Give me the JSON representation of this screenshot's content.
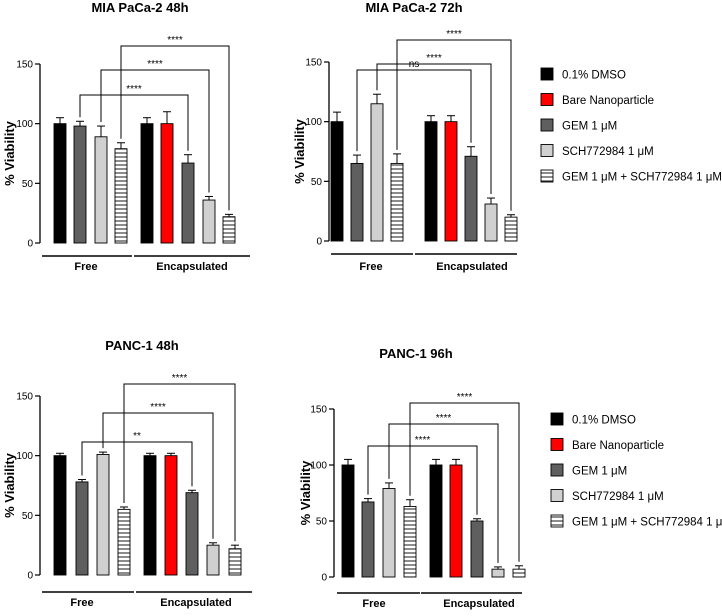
{
  "chart_data": [
    {
      "type": "bar",
      "title": "MIA PaCa-2 48h",
      "ylabel": "% Viability",
      "ylim": [
        0,
        150
      ],
      "yticks": [
        "0",
        "50",
        "100",
        "150"
      ],
      "groups": [
        "Free",
        "Encapsulated"
      ],
      "series": [
        {
          "name": "0.1% DMSO",
          "group": "Free",
          "value": 100,
          "err": 5
        },
        {
          "name": "GEM 1 μM",
          "group": "Free",
          "value": 98,
          "err": 4
        },
        {
          "name": "SCH772984 1 μM",
          "group": "Free",
          "value": 89,
          "err": 9
        },
        {
          "name": "GEM 1 μM + SCH772984 1 μM",
          "group": "Free",
          "value": 79,
          "err": 5
        },
        {
          "name": "0.1% DMSO",
          "group": "Encapsulated",
          "value": 100,
          "err": 5
        },
        {
          "name": "Bare Nanoparticle",
          "group": "Encapsulated",
          "value": 100,
          "err": 10
        },
        {
          "name": "GEM 1 μM",
          "group": "Encapsulated",
          "value": 67,
          "err": 7
        },
        {
          "name": "SCH772984 1 μM",
          "group": "Encapsulated",
          "value": 36,
          "err": 3
        },
        {
          "name": "GEM 1 μM + SCH772984 1 μM",
          "group": "Encapsulated",
          "value": 22,
          "err": 2
        }
      ],
      "significance": [
        {
          "from": "GEM 1 μM (Free)",
          "to": "GEM 1 μM (Encapsulated)",
          "label": "****"
        },
        {
          "from": "SCH772984 1 μM (Free)",
          "to": "SCH772984 1 μM (Encapsulated)",
          "label": "****"
        },
        {
          "from": "GEM 1 μM + SCH772984 1 μM (Free)",
          "to": "GEM 1 μM + SCH772984 1 μM (Encapsulated)",
          "label": "****"
        }
      ]
    },
    {
      "type": "bar",
      "title": "MIA PaCa-2 72h",
      "ylabel": "% Viability",
      "ylim": [
        0,
        150
      ],
      "yticks": [
        "0",
        "50",
        "100",
        "150"
      ],
      "groups": [
        "Free",
        "Encapsulated"
      ],
      "series": [
        {
          "name": "0.1% DMSO",
          "group": "Free",
          "value": 100,
          "err": 8
        },
        {
          "name": "GEM 1 μM",
          "group": "Free",
          "value": 65,
          "err": 7
        },
        {
          "name": "SCH772984 1 μM",
          "group": "Free",
          "value": 115,
          "err": 8
        },
        {
          "name": "GEM 1 μM + SCH772984 1 μM",
          "group": "Free",
          "value": 65,
          "err": 8
        },
        {
          "name": "0.1% DMSO",
          "group": "Encapsulated",
          "value": 100,
          "err": 5
        },
        {
          "name": "Bare Nanoparticle",
          "group": "Encapsulated",
          "value": 100,
          "err": 5
        },
        {
          "name": "GEM 1 μM",
          "group": "Encapsulated",
          "value": 71,
          "err": 8
        },
        {
          "name": "SCH772984 1 μM",
          "group": "Encapsulated",
          "value": 31,
          "err": 5
        },
        {
          "name": "GEM 1 μM + SCH772984 1 μM",
          "group": "Encapsulated",
          "value": 20,
          "err": 2
        }
      ],
      "significance": [
        {
          "from": "GEM 1 μM (Free)",
          "to": "GEM 1 μM (Encapsulated)",
          "label": "ns"
        },
        {
          "from": "SCH772984 1 μM (Free)",
          "to": "SCH772984 1 μM (Encapsulated)",
          "label": "****"
        },
        {
          "from": "GEM 1 μM + SCH772984 1 μM (Free)",
          "to": "GEM 1 μM + SCH772984 1 μM (Encapsulated)",
          "label": "****"
        }
      ]
    },
    {
      "type": "bar",
      "title": "PANC-1 48h",
      "ylabel": "% Viability",
      "ylim": [
        0,
        150
      ],
      "yticks": [
        "0",
        "50",
        "100",
        "150"
      ],
      "groups": [
        "Free",
        "Encapsulated"
      ],
      "series": [
        {
          "name": "0.1% DMSO",
          "group": "Free",
          "value": 100,
          "err": 2
        },
        {
          "name": "GEM 1 μM",
          "group": "Free",
          "value": 78,
          "err": 2
        },
        {
          "name": "SCH772984 1 μM",
          "group": "Free",
          "value": 101,
          "err": 2
        },
        {
          "name": "GEM 1 μM + SCH772984 1 μM",
          "group": "Free",
          "value": 55,
          "err": 2
        },
        {
          "name": "0.1% DMSO",
          "group": "Encapsulated",
          "value": 100,
          "err": 2
        },
        {
          "name": "Bare Nanoparticle",
          "group": "Encapsulated",
          "value": 100,
          "err": 2
        },
        {
          "name": "GEM 1 μM",
          "group": "Encapsulated",
          "value": 69,
          "err": 2
        },
        {
          "name": "SCH772984 1 μM",
          "group": "Encapsulated",
          "value": 25,
          "err": 2
        },
        {
          "name": "GEM 1 μM + SCH772984 1 μM",
          "group": "Encapsulated",
          "value": 22,
          "err": 3
        }
      ],
      "significance": [
        {
          "from": "GEM 1 μM (Free)",
          "to": "GEM 1 μM (Encapsulated)",
          "label": "**"
        },
        {
          "from": "SCH772984 1 μM (Free)",
          "to": "SCH772984 1 μM (Encapsulated)",
          "label": "****"
        },
        {
          "from": "GEM 1 μM + SCH772984 1 μM (Free)",
          "to": "GEM 1 μM + SCH772984 1 μM (Encapsulated)",
          "label": "****"
        }
      ]
    },
    {
      "type": "bar",
      "title": "PANC-1 96h",
      "ylabel": "% Viability",
      "ylim": [
        0,
        150
      ],
      "yticks": [
        "0",
        "50",
        "100",
        "150"
      ],
      "groups": [
        "Free",
        "Encapsulated"
      ],
      "series": [
        {
          "name": "0.1% DMSO",
          "group": "Free",
          "value": 100,
          "err": 5
        },
        {
          "name": "GEM 1 μM",
          "group": "Free",
          "value": 67,
          "err": 3
        },
        {
          "name": "SCH772984 1 μM",
          "group": "Free",
          "value": 79,
          "err": 5
        },
        {
          "name": "GEM 1 μM + SCH772984 1 μM",
          "group": "Free",
          "value": 63,
          "err": 6
        },
        {
          "name": "0.1% DMSO",
          "group": "Encapsulated",
          "value": 100,
          "err": 5
        },
        {
          "name": "Bare Nanoparticle",
          "group": "Encapsulated",
          "value": 100,
          "err": 5
        },
        {
          "name": "GEM 1 μM",
          "group": "Encapsulated",
          "value": 50,
          "err": 2
        },
        {
          "name": "SCH772984 1 μM",
          "group": "Encapsulated",
          "value": 7,
          "err": 2
        },
        {
          "name": "GEM 1 μM + SCH772984 1 μM",
          "group": "Encapsulated",
          "value": 7,
          "err": 3
        }
      ],
      "significance": [
        {
          "from": "GEM 1 μM (Free)",
          "to": "GEM 1 μM (Encapsulated)",
          "label": "****"
        },
        {
          "from": "SCH772984 1 μM (Free)",
          "to": "SCH772984 1 μM (Encapsulated)",
          "label": "****"
        },
        {
          "from": "GEM 1 μM + SCH772984 1 μM (Free)",
          "to": "GEM 1 μM + SCH772984 1 μM (Encapsulated)",
          "label": "****"
        }
      ]
    }
  ],
  "legend": {
    "entries": [
      {
        "label": "0.1% DMSO",
        "style": "black"
      },
      {
        "label": "Bare Nanoparticle",
        "style": "red"
      },
      {
        "label": "GEM 1 μM",
        "style": "darkgray"
      },
      {
        "label": "SCH772984 1 μM",
        "style": "lightgray"
      },
      {
        "label": "GEM 1 μM + SCH772984 1 μM",
        "style": "striped"
      }
    ]
  },
  "colors": {
    "black": "#000000",
    "red": "#ff0000",
    "darkgray": "#5f5f5f",
    "lightgray": "#d0d0d0",
    "striped": "#ffffff"
  }
}
